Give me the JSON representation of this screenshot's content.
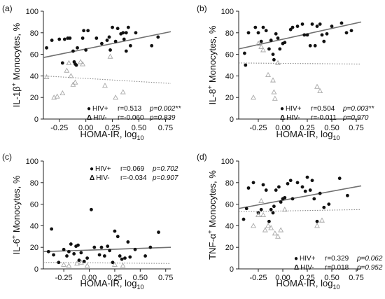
{
  "figure": {
    "x_axis_label": {
      "main": "HOMA-IR, log",
      "sub": "10"
    }
  },
  "chart_data": [
    {
      "panel_label": "(a)",
      "type": "scatter",
      "ylabel": {
        "pre": "IL-1β",
        "sup": "+",
        "post": " Monocytes, %"
      },
      "xlim": [
        -0.4,
        0.8
      ],
      "ylim": [
        0,
        100
      ],
      "x_ticks": [
        -0.25,
        0.0,
        0.25,
        0.5,
        0.75
      ],
      "x_tick_labels": [
        "-0.25",
        "0.00",
        "0.25",
        "0.50",
        "0.75"
      ],
      "y_ticks": [
        0,
        20,
        40,
        60,
        80,
        100
      ],
      "y_tick_labels": [
        "0",
        "20",
        "40",
        "60",
        "80",
        "100"
      ],
      "legend_position": "bottom-right",
      "legend": [
        {
          "marker": "●",
          "name": "HIV+",
          "r": "r=0.513",
          "p": "p=0.002**"
        },
        {
          "marker": "Δ",
          "name": "HIV-",
          "r": "r=-0.060",
          "p": "p=0.839"
        }
      ],
      "series": [
        {
          "name": "HIV+",
          "marker": "filled-circle",
          "fit_line": [
            [
              -0.4,
              57
            ],
            [
              0.8,
              81
            ]
          ],
          "fit_style": "solid",
          "points": [
            [
              -0.37,
              66
            ],
            [
              -0.32,
              73
            ],
            [
              -0.25,
              74
            ],
            [
              -0.22,
              52
            ],
            [
              -0.2,
              74
            ],
            [
              -0.17,
              75
            ],
            [
              -0.15,
              75
            ],
            [
              -0.12,
              63
            ],
            [
              -0.11,
              53
            ],
            [
              -0.1,
              51
            ],
            [
              -0.09,
              50
            ],
            [
              -0.08,
              66
            ],
            [
              -0.03,
              75
            ],
            [
              -0.02,
              82
            ],
            [
              0.0,
              64
            ],
            [
              0.02,
              82
            ],
            [
              0.1,
              75
            ],
            [
              0.15,
              70
            ],
            [
              0.2,
              73
            ],
            [
              0.22,
              76
            ],
            [
              0.23,
              64
            ],
            [
              0.25,
              85
            ],
            [
              0.28,
              72
            ],
            [
              0.3,
              84
            ],
            [
              0.33,
              79
            ],
            [
              0.35,
              80
            ],
            [
              0.36,
              74
            ],
            [
              0.38,
              63
            ],
            [
              0.38,
              80
            ],
            [
              0.4,
              85
            ],
            [
              0.42,
              68
            ],
            [
              0.47,
              80
            ],
            [
              0.62,
              68
            ],
            [
              0.68,
              76
            ]
          ]
        },
        {
          "name": "HIV-",
          "marker": "open-triangle",
          "fit_line": [
            [
              -0.4,
              40
            ],
            [
              0.8,
              33
            ]
          ],
          "fit_style": "dotted",
          "points": [
            [
              -0.37,
              39
            ],
            [
              -0.3,
              20
            ],
            [
              -0.27,
              21
            ],
            [
              -0.22,
              24
            ],
            [
              -0.18,
              45
            ],
            [
              -0.16,
              52
            ],
            [
              -0.14,
              40
            ],
            [
              -0.12,
              32
            ],
            [
              -0.1,
              34
            ],
            [
              -0.05,
              53
            ],
            [
              -0.03,
              51
            ],
            [
              0.18,
              31
            ],
            [
              0.23,
              58
            ],
            [
              0.28,
              20
            ],
            [
              0.35,
              25
            ]
          ]
        }
      ]
    },
    {
      "panel_label": "(b)",
      "type": "scatter",
      "ylabel": {
        "pre": "IL-8",
        "sup": "+",
        "post": " Monocytes, %"
      },
      "xlim": [
        -0.45,
        0.8
      ],
      "ylim": [
        0,
        100
      ],
      "x_ticks": [
        -0.25,
        0.0,
        0.25,
        0.5,
        0.75
      ],
      "x_tick_labels": [
        "-0.25",
        "0.00",
        "0.25",
        "0.50",
        "0.75"
      ],
      "y_ticks": [
        0,
        20,
        40,
        60,
        80,
        100
      ],
      "y_tick_labels": [
        "0",
        "20",
        "40",
        "60",
        "80",
        "100"
      ],
      "legend_position": "bottom-right",
      "legend": [
        {
          "marker": "●",
          "name": "HIV+",
          "r": "r=0.504",
          "p": "p=0.003**"
        },
        {
          "marker": "Δ",
          "name": "HIV-",
          "r": "r=-0.011",
          "p": "p=0.970"
        }
      ],
      "series": [
        {
          "name": "HIV+",
          "marker": "filled-circle",
          "fit_line": [
            [
              -0.45,
              65
            ],
            [
              0.8,
              90
            ]
          ],
          "fit_style": "solid",
          "points": [
            [
              -0.39,
              61
            ],
            [
              -0.38,
              50
            ],
            [
              -0.35,
              80
            ],
            [
              -0.28,
              85
            ],
            [
              -0.25,
              80
            ],
            [
              -0.22,
              72
            ],
            [
              -0.2,
              85
            ],
            [
              -0.17,
              82
            ],
            [
              -0.14,
              65
            ],
            [
              -0.12,
              73
            ],
            [
              -0.1,
              60
            ],
            [
              -0.09,
              55
            ],
            [
              -0.07,
              79
            ],
            [
              -0.05,
              75
            ],
            [
              -0.03,
              65
            ],
            [
              0.0,
              70
            ],
            [
              0.02,
              71
            ],
            [
              0.08,
              83
            ],
            [
              0.1,
              85
            ],
            [
              0.15,
              86
            ],
            [
              0.2,
              88
            ],
            [
              0.22,
              78
            ],
            [
              0.25,
              78
            ],
            [
              0.28,
              68
            ],
            [
              0.3,
              88
            ],
            [
              0.33,
              68
            ],
            [
              0.35,
              86
            ],
            [
              0.38,
              88
            ],
            [
              0.4,
              78
            ],
            [
              0.42,
              72
            ],
            [
              0.45,
              79
            ],
            [
              0.5,
              86
            ],
            [
              0.6,
              89
            ],
            [
              0.65,
              80
            ],
            [
              0.7,
              82
            ]
          ]
        },
        {
          "name": "HIV-",
          "marker": "open-triangle",
          "fit_line": [
            [
              -0.45,
              52
            ],
            [
              0.8,
              51
            ]
          ],
          "fit_style": "dotted",
          "points": [
            [
              -0.3,
              20
            ],
            [
              -0.25,
              70
            ],
            [
              -0.22,
              67
            ],
            [
              -0.2,
              64
            ],
            [
              -0.15,
              41
            ],
            [
              -0.1,
              36
            ],
            [
              -0.09,
              25
            ],
            [
              -0.08,
              19
            ],
            [
              -0.05,
              52
            ],
            [
              0.35,
              30
            ],
            [
              0.38,
              26
            ]
          ]
        }
      ]
    },
    {
      "panel_label": "(c)",
      "type": "scatter",
      "ylabel": {
        "pre": "IL-6",
        "sup": "+",
        "post": " Monocytes, %"
      },
      "xlim": [
        -0.45,
        0.8
      ],
      "ylim": [
        0,
        100
      ],
      "x_ticks": [
        -0.25,
        0.0,
        0.25,
        0.5,
        0.75
      ],
      "x_tick_labels": [
        "-0.25",
        "0.00",
        "0.25",
        "0.50",
        "0.75"
      ],
      "y_ticks": [
        0,
        20,
        40,
        60,
        80,
        100
      ],
      "y_tick_labels": [
        "0",
        "20",
        "40",
        "60",
        "80",
        "100"
      ],
      "legend_position": "top-right",
      "legend": [
        {
          "marker": "●",
          "name": "HIV+",
          "r": "r=0.069",
          "p": "p=0.702"
        },
        {
          "marker": "Δ",
          "name": "HIV-",
          "r": "r=-0.034",
          "p": "p=0.907"
        }
      ],
      "series": [
        {
          "name": "HIV+",
          "marker": "filled-circle",
          "fit_line": [
            [
              -0.45,
              16
            ],
            [
              0.8,
              20
            ]
          ],
          "fit_style": "solid",
          "points": [
            [
              -0.4,
              16
            ],
            [
              -0.37,
              37
            ],
            [
              -0.35,
              13
            ],
            [
              -0.3,
              6
            ],
            [
              -0.25,
              18
            ],
            [
              -0.22,
              12
            ],
            [
              -0.2,
              16
            ],
            [
              -0.18,
              23
            ],
            [
              -0.15,
              14
            ],
            [
              -0.13,
              21
            ],
            [
              -0.11,
              22
            ],
            [
              -0.1,
              8
            ],
            [
              -0.08,
              15
            ],
            [
              -0.05,
              7
            ],
            [
              -0.02,
              10
            ],
            [
              0.02,
              55
            ],
            [
              0.05,
              20
            ],
            [
              0.1,
              13
            ],
            [
              0.12,
              20
            ],
            [
              0.15,
              12
            ],
            [
              0.18,
              21
            ],
            [
              0.2,
              17
            ],
            [
              0.23,
              6
            ],
            [
              0.25,
              35
            ],
            [
              0.28,
              30
            ],
            [
              0.3,
              12
            ],
            [
              0.32,
              9
            ],
            [
              0.35,
              10
            ],
            [
              0.38,
              25
            ],
            [
              0.4,
              11
            ],
            [
              0.45,
              18
            ],
            [
              0.55,
              12
            ],
            [
              0.6,
              20
            ],
            [
              0.68,
              34
            ]
          ]
        },
        {
          "name": "HIV-",
          "marker": "open-triangle",
          "fit_line": [
            [
              -0.45,
              6
            ],
            [
              0.8,
              5
            ]
          ],
          "fit_style": "dotted",
          "points": [
            [
              -0.25,
              4
            ],
            [
              -0.2,
              3
            ],
            [
              -0.12,
              5
            ],
            [
              -0.08,
              6
            ],
            [
              -0.02,
              3
            ],
            [
              0.25,
              4
            ],
            [
              0.33,
              3
            ]
          ]
        }
      ]
    },
    {
      "panel_label": "(d)",
      "type": "scatter",
      "ylabel": {
        "pre": "TNF-α",
        "sup": "+",
        "post": " Monocytes, %"
      },
      "xlim": [
        -0.45,
        0.8
      ],
      "ylim": [
        0,
        100
      ],
      "x_ticks": [
        -0.25,
        0.0,
        0.25,
        0.5,
        0.75
      ],
      "x_tick_labels": [
        "-0.25",
        "0.00",
        "0.25",
        "0.50",
        "0.75"
      ],
      "y_ticks": [
        0,
        20,
        40,
        60,
        80,
        100
      ],
      "y_tick_labels": [
        "0",
        "20",
        "40",
        "60",
        "80",
        "100"
      ],
      "legend_position": "bottom-right",
      "legend": [
        {
          "marker": "●",
          "name": "HIV+",
          "r": "r=0.329",
          "p": "p=0.062"
        },
        {
          "marker": "Δ",
          "name": "HIV-",
          "r": "r=0.018",
          "p": "p=0.952"
        }
      ],
      "series": [
        {
          "name": "HIV+",
          "marker": "filled-circle",
          "fit_line": [
            [
              -0.45,
              56
            ],
            [
              0.8,
              77
            ]
          ],
          "fit_style": "solid",
          "points": [
            [
              -0.4,
              46
            ],
            [
              -0.37,
              56
            ],
            [
              -0.35,
              75
            ],
            [
              -0.3,
              80
            ],
            [
              -0.25,
              52
            ],
            [
              -0.22,
              55
            ],
            [
              -0.2,
              78
            ],
            [
              -0.17,
              73
            ],
            [
              -0.14,
              44
            ],
            [
              -0.12,
              55
            ],
            [
              -0.1,
              52
            ],
            [
              -0.09,
              58
            ],
            [
              -0.07,
              73
            ],
            [
              -0.04,
              76
            ],
            [
              -0.02,
              62
            ],
            [
              0.0,
              65
            ],
            [
              0.02,
              66
            ],
            [
              0.05,
              79
            ],
            [
              0.08,
              82
            ],
            [
              0.1,
              65
            ],
            [
              0.15,
              80
            ],
            [
              0.2,
              76
            ],
            [
              0.23,
              72
            ],
            [
              0.25,
              85
            ],
            [
              0.28,
              73
            ],
            [
              0.3,
              82
            ],
            [
              0.32,
              65
            ],
            [
              0.35,
              44
            ],
            [
              0.38,
              70
            ],
            [
              0.42,
              57
            ],
            [
              0.47,
              60
            ],
            [
              0.58,
              84
            ],
            [
              0.66,
              68
            ]
          ]
        },
        {
          "name": "HIV-",
          "marker": "open-triangle",
          "fit_line": [
            [
              -0.45,
              53
            ],
            [
              0.8,
              55
            ]
          ],
          "fit_style": "dotted",
          "points": [
            [
              -0.3,
              40
            ],
            [
              -0.25,
              50
            ],
            [
              -0.22,
              63
            ],
            [
              -0.2,
              50
            ],
            [
              -0.18,
              36
            ],
            [
              -0.15,
              40
            ],
            [
              -0.12,
              38
            ],
            [
              -0.08,
              33
            ],
            [
              -0.05,
              30
            ],
            [
              -0.02,
              36
            ],
            [
              0.02,
              55
            ],
            [
              0.35,
              40
            ],
            [
              0.4,
              45
            ]
          ]
        }
      ]
    }
  ]
}
